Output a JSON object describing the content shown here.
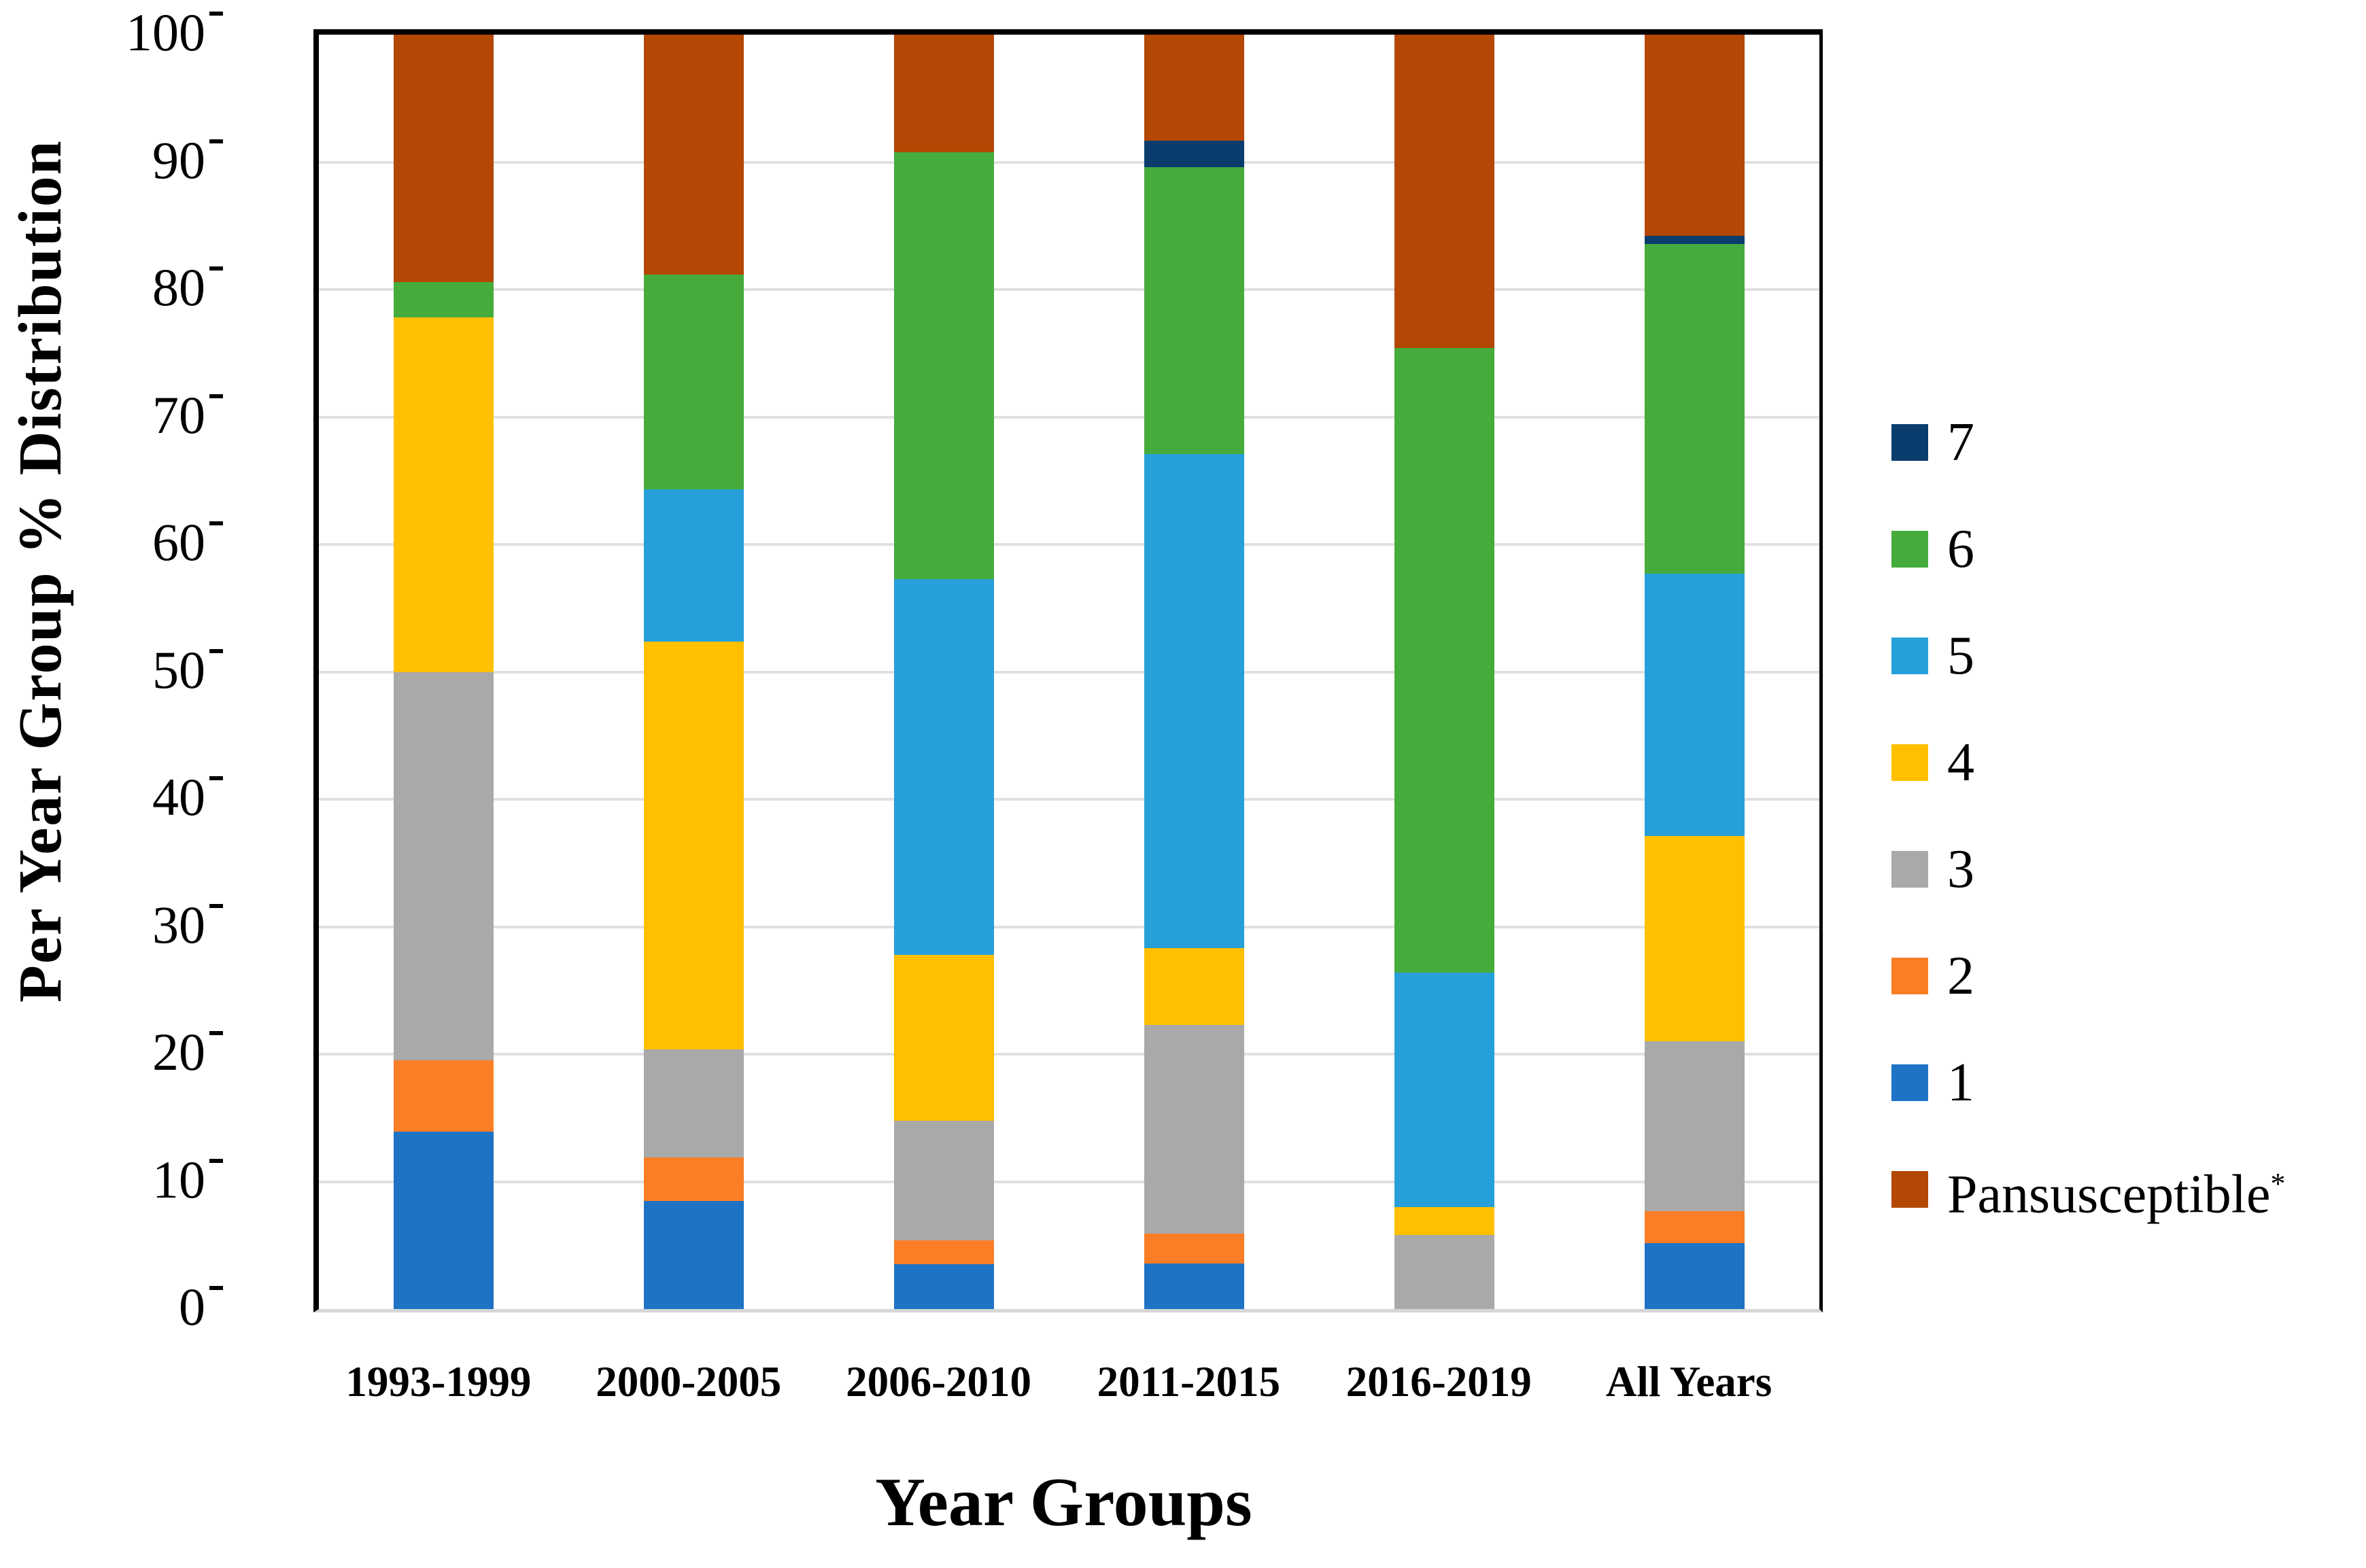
{
  "figure": {
    "ylabel": "Per Year Group % Distribution",
    "xlabel": "Year Groups"
  },
  "chart_data": {
    "type": "bar",
    "subtype": "stacked-100-percent",
    "title": "",
    "xlabel": "Year Groups",
    "ylabel": "Per Year Group % Distribution",
    "ylim": [
      0,
      100
    ],
    "yticks": [
      0,
      10,
      20,
      30,
      40,
      50,
      60,
      70,
      80,
      90,
      100
    ],
    "grid": "horizontal",
    "legend_position": "right",
    "categories": [
      "1993-1999",
      "2000-2005",
      "2006-2010",
      "2011-2015",
      "2016-2019",
      "All Years"
    ],
    "series_bottom_to_top": [
      {
        "name": "1",
        "color": "#1E73C5",
        "values": [
          13.9,
          8.5,
          3.5,
          3.6,
          0,
          5.2
        ]
      },
      {
        "name": "2",
        "color": "#FB7D26",
        "values": [
          5.6,
          3.4,
          1.9,
          2.3,
          0,
          2.5
        ]
      },
      {
        "name": "3",
        "color": "#A9A9A9",
        "values": [
          30.5,
          8.5,
          9.4,
          16.4,
          5.8,
          13.3
        ]
      },
      {
        "name": "4",
        "color": "#FFC000",
        "values": [
          27.8,
          32.0,
          13.0,
          6.0,
          2.2,
          16.1
        ]
      },
      {
        "name": "5",
        "color": "#27A0DA",
        "values": [
          0,
          11.9,
          29.5,
          38.8,
          18.4,
          20.6
        ]
      },
      {
        "name": "6",
        "color": "#45AC3C",
        "values": [
          2.8,
          16.9,
          33.5,
          22.5,
          49.0,
          25.9
        ]
      },
      {
        "name": "7",
        "color": "#0A3D6E",
        "values": [
          0,
          0,
          0,
          2.1,
          0,
          0.6
        ]
      },
      {
        "name": "Pansusceptible",
        "sup": "*",
        "color": "#B34703",
        "values": [
          19.4,
          18.8,
          9.2,
          8.3,
          24.6,
          15.8
        ]
      }
    ],
    "legend": [
      {
        "label": "7",
        "color": "#0A3D6E"
      },
      {
        "label": "6",
        "color": "#45AC3C"
      },
      {
        "label": "5",
        "color": "#27A0DA"
      },
      {
        "label": "4",
        "color": "#FFC000"
      },
      {
        "label": "3",
        "color": "#A9A9A9"
      },
      {
        "label": "2",
        "color": "#FB7D26"
      },
      {
        "label": "1",
        "color": "#1E73C5"
      },
      {
        "label": "Pansusceptible",
        "sup": "*",
        "color": "#B34703"
      }
    ]
  },
  "style_colors": {
    "gridline": "#e0e0e0",
    "axis": "#000000",
    "baseline": "#d6d6d6"
  }
}
